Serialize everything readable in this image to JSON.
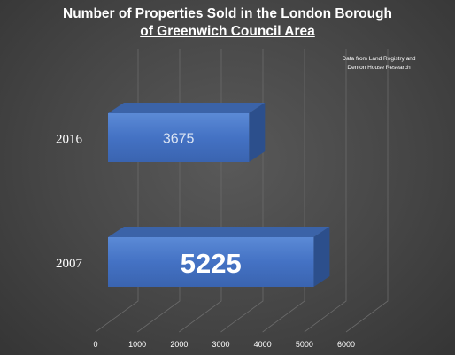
{
  "chart_data": {
    "type": "bar",
    "orientation": "horizontal",
    "style": "3d",
    "title_lines": [
      "Number of Properties Sold in the London Borough",
      "of Greenwich Council  Area"
    ],
    "annotation_lines": [
      "Data from  Land Registry and",
      "Denton House Research"
    ],
    "categories": [
      "2016",
      "2007"
    ],
    "values": [
      3675,
      5225
    ],
    "data_labels": [
      "3675",
      "5225"
    ],
    "xlim": [
      0,
      6000
    ],
    "x_ticks": [
      0,
      1000,
      2000,
      3000,
      4000,
      5000,
      6000
    ],
    "x_tick_labels": [
      "0",
      "1000",
      "2000",
      "3000",
      "4000",
      "5000",
      "6000"
    ],
    "grid": true,
    "bar_color": "#4472c4",
    "background_color": "#464646"
  }
}
